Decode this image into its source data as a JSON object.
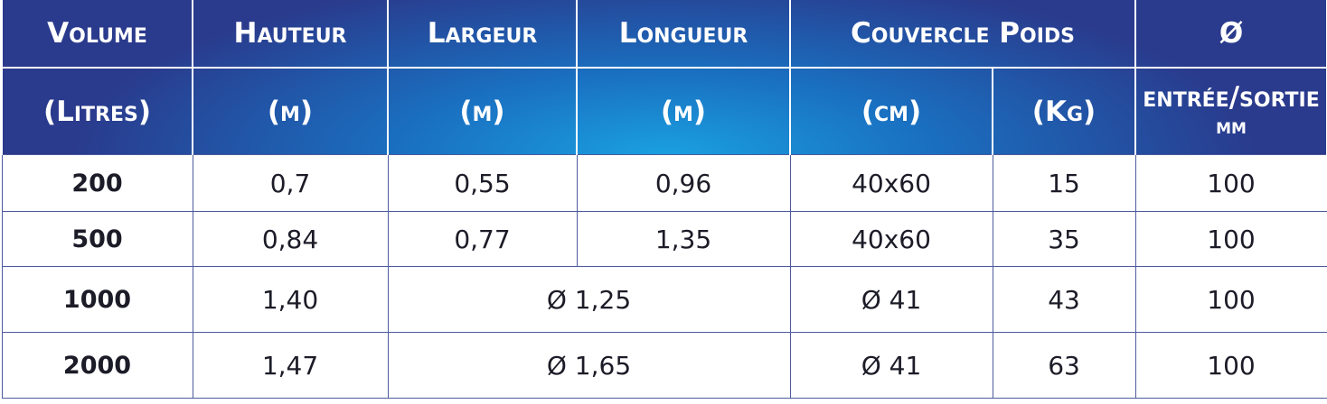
{
  "header": {
    "row1": [
      "Volume",
      "Hauteur",
      "Largeur",
      "Longueur",
      "Couvercle Poids",
      "Ø"
    ],
    "row2": [
      "(Litres)",
      "(m)",
      "(m)",
      "(m)",
      "(cm)",
      "(Kg)",
      "entrée/sortie",
      "mm"
    ]
  },
  "table": {
    "rows": [
      [
        "200",
        "0,7",
        "0,55",
        "0,96",
        "40x60",
        "15",
        "100"
      ],
      [
        "500",
        "0,84",
        "0,77",
        "1,35",
        "40x60",
        "35",
        "100"
      ],
      [
        "1000",
        "1,40",
        "Ø 1,25",
        "Ø 41",
        "43",
        "100"
      ],
      [
        "2000",
        "1,47",
        "Ø 1,65",
        "Ø 41",
        "63",
        "100"
      ]
    ]
  }
}
